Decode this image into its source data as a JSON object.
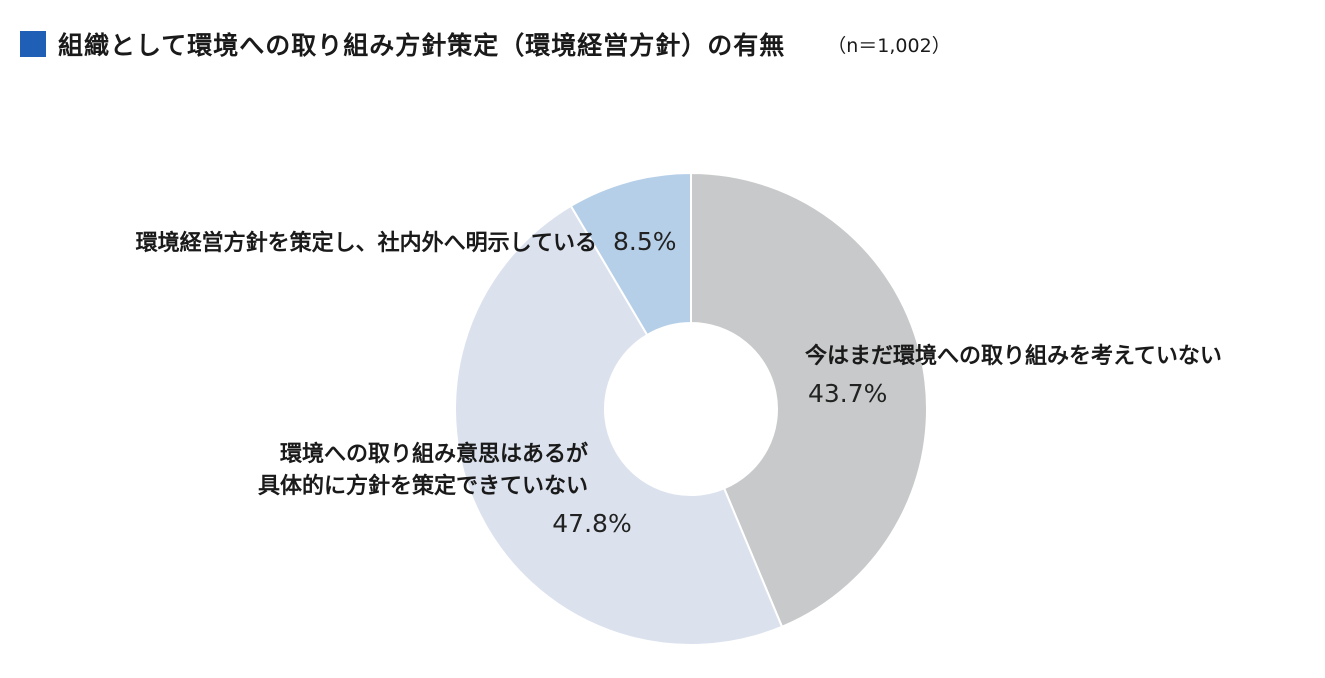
{
  "header": {
    "title": "組織として環境への取り組み方針策定（環境経営方針）の有無",
    "sample": "（n＝1,002）",
    "marker_color": "#1f5fb5"
  },
  "chart_data": {
    "type": "pie",
    "title": "組織として環境への取り組み方針策定（環境経営方針）の有無",
    "donut": true,
    "start": "12 o'clock, clockwise",
    "slices": [
      {
        "label": [
          "今はまだ環境への取り組みを考えていない"
        ],
        "value": 43.7,
        "value_label": "43.7%",
        "color": "#c8c9ca"
      },
      {
        "label": [
          "環境への取り組み意思はあるが",
          "具体的に方針を策定できていない"
        ],
        "value": 47.8,
        "value_label": "47.8%",
        "color": "#dbe2ee"
      },
      {
        "label": [
          "環境経営方針を策定し、社内外へ明示している"
        ],
        "value": 8.5,
        "value_label": "8.5%",
        "color": "#b6cfe8"
      }
    ]
  }
}
